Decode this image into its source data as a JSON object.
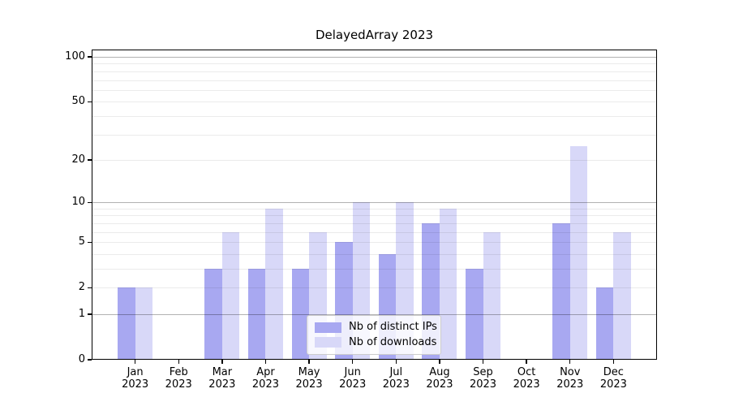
{
  "figure": {
    "title": "DelayedArray 2023"
  },
  "colors": {
    "distinct_ips_bar": "#a8a8f1",
    "downloads_bar": "#d8d8f8",
    "axis": "#000000",
    "major_grid": "rgba(0,0,0,0.30)",
    "minor_grid": "rgba(0,0,0,0.08)",
    "legend_bg": "rgba(255,255,255,0.8)",
    "legend_border": "#cccccc"
  },
  "legend": {
    "position": "lower center",
    "items": [
      {
        "label": "Nb of distinct IPs",
        "series": "distinct_ips"
      },
      {
        "label": "Nb of downloads",
        "series": "downloads"
      }
    ]
  },
  "chart_data": {
    "type": "bar",
    "title": "DelayedArray 2023",
    "x_categories": [
      {
        "month": "Jan",
        "year": "2023"
      },
      {
        "month": "Feb",
        "year": "2023"
      },
      {
        "month": "Mar",
        "year": "2023"
      },
      {
        "month": "Apr",
        "year": "2023"
      },
      {
        "month": "May",
        "year": "2023"
      },
      {
        "month": "Jun",
        "year": "2023"
      },
      {
        "month": "Jul",
        "year": "2023"
      },
      {
        "month": "Aug",
        "year": "2023"
      },
      {
        "month": "Sep",
        "year": "2023"
      },
      {
        "month": "Oct",
        "year": "2023"
      },
      {
        "month": "Nov",
        "year": "2023"
      },
      {
        "month": "Dec",
        "year": "2023"
      }
    ],
    "series": [
      {
        "name": "Nb of distinct IPs",
        "key": "distinct_ips",
        "color": "#a8a8f1",
        "values": [
          2,
          0,
          3,
          3,
          3,
          5,
          4,
          7,
          3,
          0,
          7,
          2
        ]
      },
      {
        "name": "Nb of downloads",
        "key": "downloads",
        "color": "#d8d8f8",
        "values": [
          2,
          0,
          6,
          9,
          6,
          10,
          10,
          9,
          6,
          0,
          25,
          6
        ]
      }
    ],
    "y_scale": "log1p",
    "y_ticks": [
      0,
      1,
      2,
      5,
      10,
      20,
      50,
      100
    ],
    "y_limit": [
      0,
      112
    ],
    "major_gridlines": [
      1,
      10,
      100
    ],
    "minor_gridlines": [
      2,
      3,
      4,
      5,
      6,
      7,
      8,
      9,
      20,
      30,
      40,
      50,
      60,
      70,
      80,
      90
    ],
    "grid_over_bars": true
  }
}
